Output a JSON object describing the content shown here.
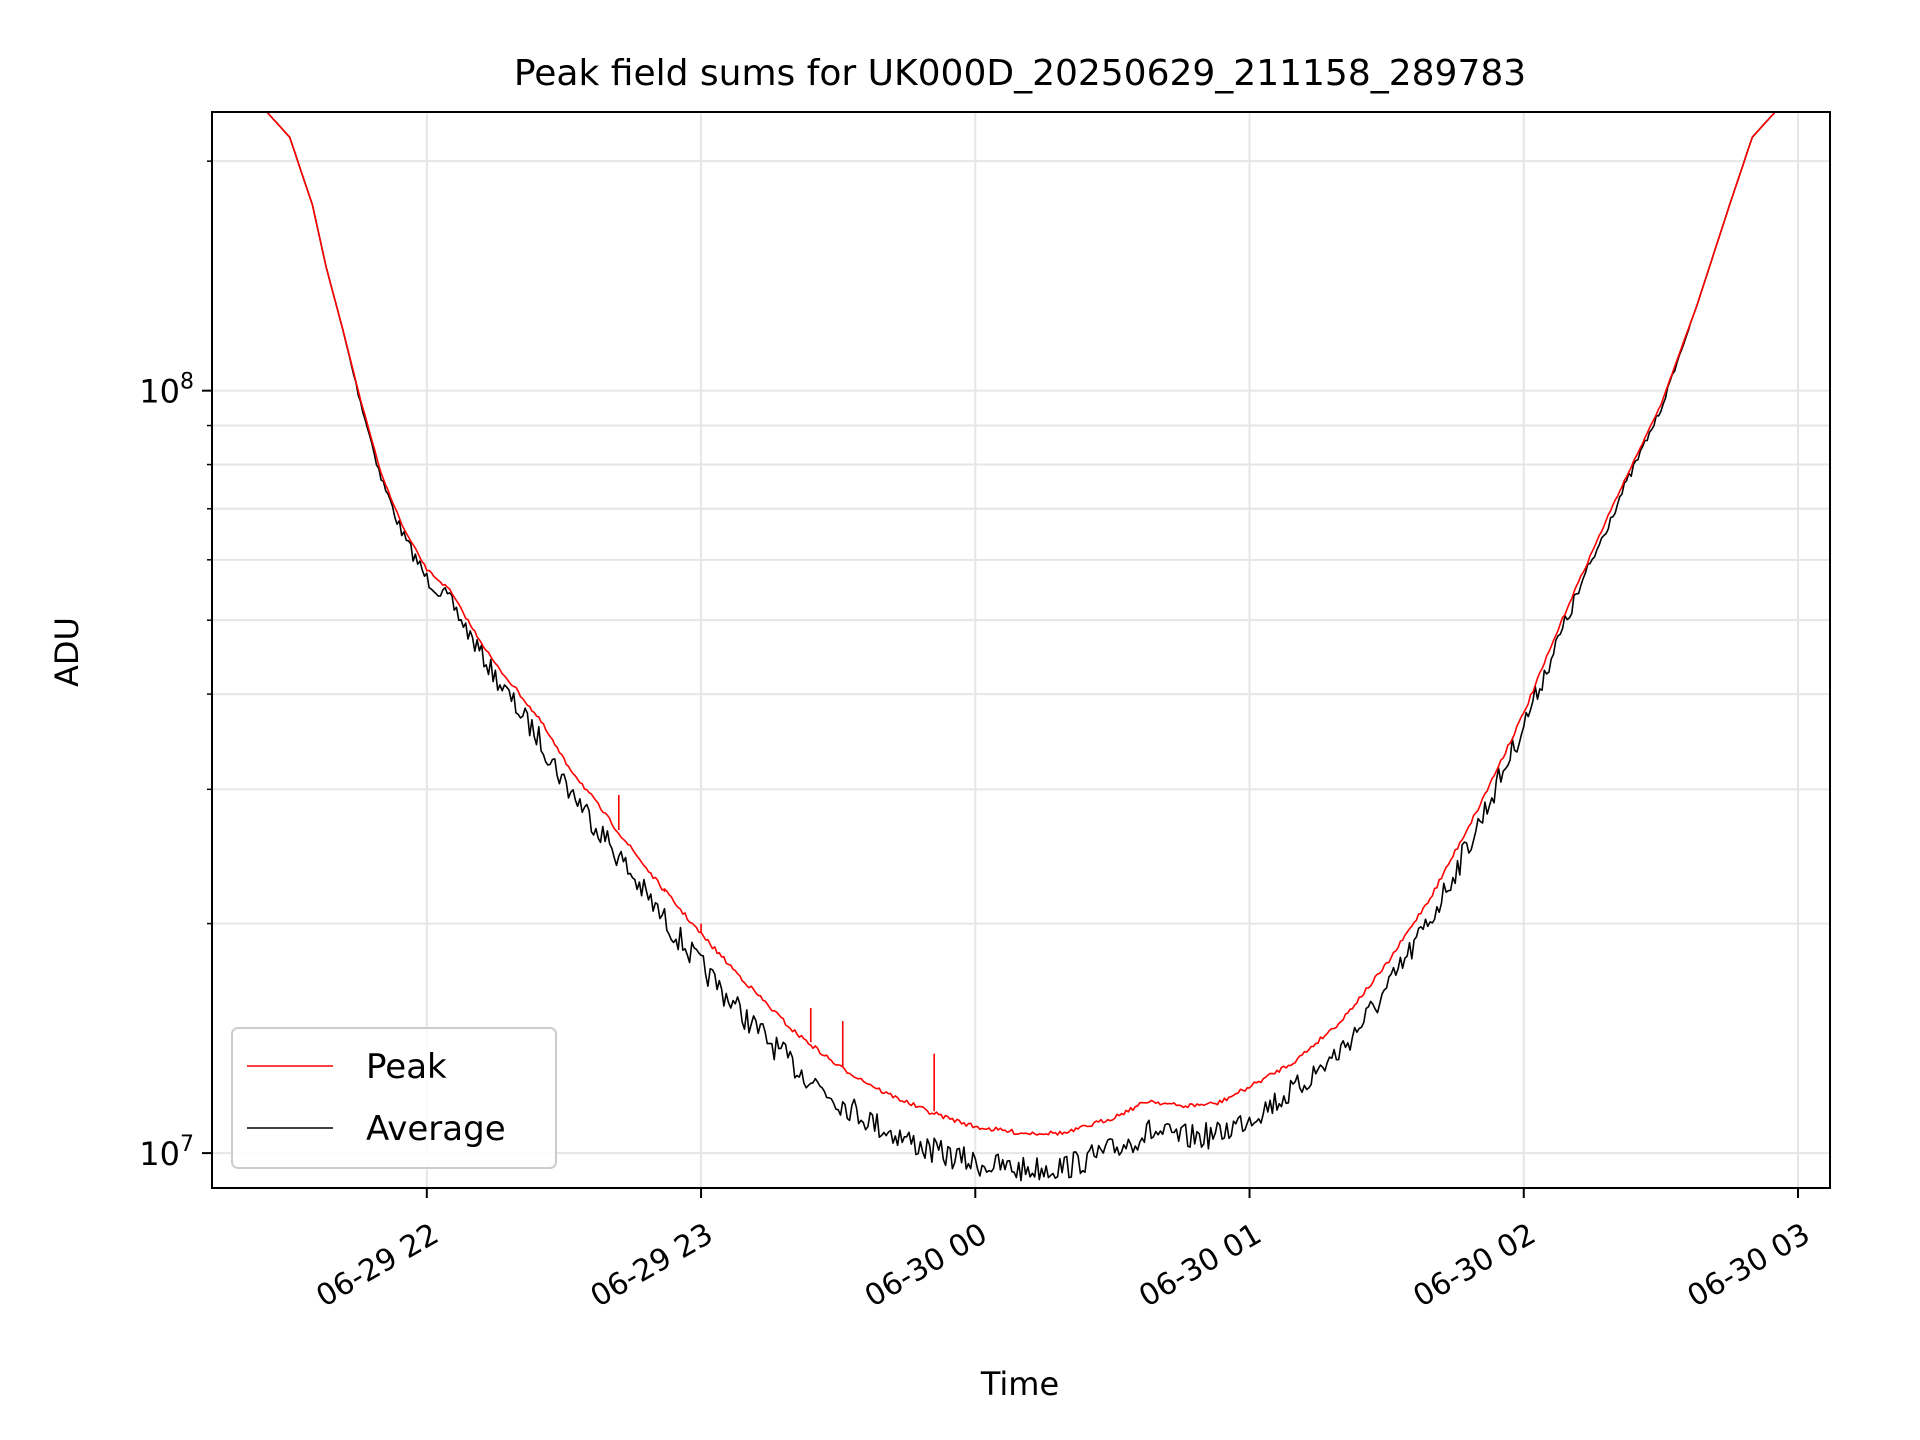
{
  "chart_data": {
    "type": "line",
    "title": "Peak field sums for UK000D_20250629_211158_289783",
    "xlabel": "Time",
    "ylabel": "ADU",
    "yscale": "log",
    "grid": true,
    "legend_position": "lower-left",
    "xlim": [
      "2025-06-29 21:13",
      "2025-06-30 03:07"
    ],
    "ylim": [
      9000000,
      232000000
    ],
    "x_ticks": [
      "06-29 22",
      "06-29 23",
      "06-30 00",
      "06-30 01",
      "06-30 02",
      "06-30 03"
    ],
    "y_ticks": [
      {
        "value": 10000000,
        "mantissa": "10",
        "exponent": "7"
      },
      {
        "value": 100000000,
        "mantissa": "10",
        "exponent": "8"
      }
    ],
    "colors": {
      "peak": "#ff0000",
      "average": "#000000"
    },
    "series": [
      {
        "name": "Peak",
        "color": "#ff0000",
        "points": [
          [
            "2025-06-29 21:13",
            232000000
          ],
          [
            "2025-06-29 21:25",
            232000000
          ],
          [
            "2025-06-29 21:30",
            215000000
          ],
          [
            "2025-06-29 21:35",
            175000000
          ],
          [
            "2025-06-29 21:38",
            145000000
          ],
          [
            "2025-06-29 21:42",
            118000000
          ],
          [
            "2025-06-29 21:45",
            100000000
          ],
          [
            "2025-06-29 21:50",
            78000000
          ],
          [
            "2025-06-29 21:55",
            66000000
          ],
          [
            "2025-06-29 22:00",
            58500000
          ],
          [
            "2025-06-29 22:05",
            55000000
          ],
          [
            "2025-06-29 22:10",
            49000000
          ],
          [
            "2025-06-29 22:15",
            44000000
          ],
          [
            "2025-06-29 22:20",
            40500000
          ],
          [
            "2025-06-29 22:25",
            37000000
          ],
          [
            "2025-06-29 22:30",
            33000000
          ],
          [
            "2025-06-29 22:40",
            27500000
          ],
          [
            "2025-06-29 22:50",
            23000000
          ],
          [
            "2025-06-29 23:00",
            19500000
          ],
          [
            "2025-06-29 23:10",
            16800000
          ],
          [
            "2025-06-29 23:20",
            14600000
          ],
          [
            "2025-06-29 23:30",
            13100000
          ],
          [
            "2025-06-29 23:40",
            12100000
          ],
          [
            "2025-06-29 23:50",
            11400000
          ],
          [
            "2025-06-30 00:00",
            10900000
          ],
          [
            "2025-06-30 00:10",
            10700000
          ],
          [
            "2025-06-30 00:20",
            10700000
          ],
          [
            "2025-06-30 00:30",
            11200000
          ],
          [
            "2025-06-30 00:38",
            11800000
          ],
          [
            "2025-06-30 00:45",
            11600000
          ],
          [
            "2025-06-30 00:53",
            11700000
          ],
          [
            "2025-06-30 01:00",
            12300000
          ],
          [
            "2025-06-30 01:10",
            13300000
          ],
          [
            "2025-06-30 01:20",
            15000000
          ],
          [
            "2025-06-30 01:30",
            17800000
          ],
          [
            "2025-06-30 01:40",
            22000000
          ],
          [
            "2025-06-30 01:50",
            28500000
          ],
          [
            "2025-06-30 02:00",
            38000000
          ],
          [
            "2025-06-30 02:10",
            53000000
          ],
          [
            "2025-06-30 02:20",
            72000000
          ],
          [
            "2025-06-30 02:30",
            96000000
          ],
          [
            "2025-06-30 02:38",
            130000000
          ],
          [
            "2025-06-30 02:45",
            175000000
          ],
          [
            "2025-06-30 02:50",
            215000000
          ],
          [
            "2025-06-30 02:55",
            232000000
          ],
          [
            "2025-06-30 03:07",
            232000000
          ]
        ],
        "spikes": [
          [
            "2025-06-29 22:42",
            29500000
          ],
          [
            "2025-06-29 22:52",
            22000000
          ],
          [
            "2025-06-29 23:00",
            20000000
          ],
          [
            "2025-06-29 23:24",
            15500000
          ],
          [
            "2025-06-29 23:31",
            14900000
          ],
          [
            "2025-06-29 23:51",
            13500000
          ]
        ]
      },
      {
        "name": "Average",
        "color": "#000000",
        "points": [
          [
            "2025-06-29 21:13",
            232000000
          ],
          [
            "2025-06-29 21:25",
            232000000
          ],
          [
            "2025-06-29 21:30",
            215000000
          ],
          [
            "2025-06-29 21:35",
            175000000
          ],
          [
            "2025-06-29 21:38",
            145000000
          ],
          [
            "2025-06-29 21:42",
            118000000
          ],
          [
            "2025-06-29 21:45",
            100000000
          ],
          [
            "2025-06-29 21:50",
            78000000
          ],
          [
            "2025-06-29 21:55",
            65500000
          ],
          [
            "2025-06-29 22:00",
            58000000
          ],
          [
            "2025-06-29 22:05",
            54500000
          ],
          [
            "2025-06-29 22:10",
            48500000
          ],
          [
            "2025-06-29 22:15",
            43500000
          ],
          [
            "2025-06-29 22:20",
            39500000
          ],
          [
            "2025-06-29 22:25",
            36000000
          ],
          [
            "2025-06-29 22:30",
            32000000
          ],
          [
            "2025-06-29 22:40",
            26500000
          ],
          [
            "2025-06-29 22:50",
            21800000
          ],
          [
            "2025-06-29 23:00",
            18300000
          ],
          [
            "2025-06-29 23:10",
            15600000
          ],
          [
            "2025-06-29 23:20",
            13600000
          ],
          [
            "2025-06-29 23:30",
            12200000
          ],
          [
            "2025-06-29 23:40",
            11200000
          ],
          [
            "2025-06-29 23:50",
            10500000
          ],
          [
            "2025-06-30 00:00",
            10100000
          ],
          [
            "2025-06-30 00:10",
            9900000
          ],
          [
            "2025-06-30 00:20",
            10000000
          ],
          [
            "2025-06-30 00:30",
            10500000
          ],
          [
            "2025-06-30 00:38",
            11100000
          ],
          [
            "2025-06-30 00:45",
            10900000
          ],
          [
            "2025-06-30 00:53",
            11000000
          ],
          [
            "2025-06-30 01:00",
            11600000
          ],
          [
            "2025-06-30 01:10",
            12600000
          ],
          [
            "2025-06-30 01:20",
            14200000
          ],
          [
            "2025-06-30 01:30",
            17000000
          ],
          [
            "2025-06-30 01:40",
            21300000
          ],
          [
            "2025-06-30 01:50",
            28000000
          ],
          [
            "2025-06-30 02:00",
            37800000
          ],
          [
            "2025-06-30 02:10",
            52500000
          ],
          [
            "2025-06-30 02:20",
            71500000
          ],
          [
            "2025-06-30 02:30",
            95500000
          ],
          [
            "2025-06-30 02:38",
            130000000
          ],
          [
            "2025-06-30 02:45",
            175000000
          ],
          [
            "2025-06-30 02:50",
            215000000
          ],
          [
            "2025-06-30 02:55",
            232000000
          ],
          [
            "2025-06-30 03:07",
            232000000
          ]
        ]
      }
    ]
  }
}
